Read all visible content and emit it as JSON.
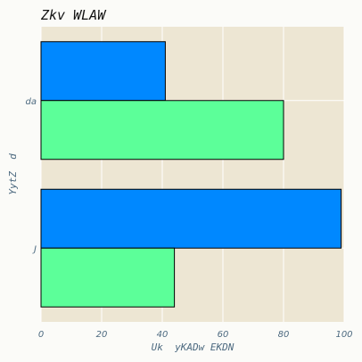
{
  "chart_data": {
    "type": "bar",
    "orientation": "horizontal",
    "title": "Zkv WLAW",
    "xlabel": "Uk  yKADw EKDN",
    "ylabel": "YytZ  d",
    "categories": [
      "da",
      "J"
    ],
    "series": [
      {
        "color": "#0088ff",
        "values": [
          41,
          99
        ]
      },
      {
        "color": "#5cff99",
        "values": [
          80,
          44
        ]
      }
    ],
    "xlim": [
      0,
      100
    ],
    "xticks": [
      0,
      20,
      40,
      60,
      80,
      100
    ],
    "grid": true,
    "background": "#ede6d3"
  }
}
